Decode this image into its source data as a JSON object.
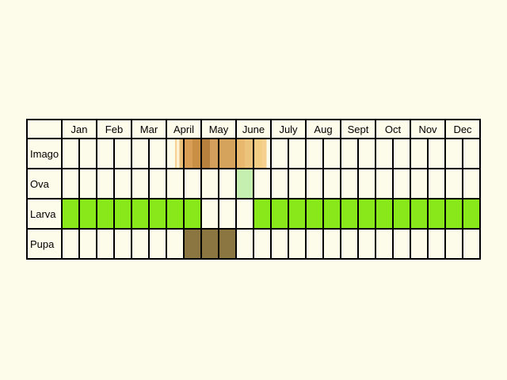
{
  "months": [
    "Jan",
    "Feb",
    "Mar",
    "April",
    "May",
    "June",
    "July",
    "Aug",
    "Sept",
    "Oct",
    "Nov",
    "Dec"
  ],
  "rows": [
    {
      "label": "Imago",
      "fills": [
        {
          "from": 6.5,
          "to": 6.6,
          "color": "#f5d08e"
        },
        {
          "from": 6.6,
          "to": 6.75,
          "color": "#fdf2d4"
        },
        {
          "from": 6.75,
          "to": 7.0,
          "color": "#e9bf78"
        },
        {
          "from": 7.0,
          "to": 7.5,
          "color": "#d99e56"
        },
        {
          "from": 7.5,
          "to": 8.0,
          "color": "#c98f45"
        },
        {
          "from": 8.0,
          "to": 8.5,
          "color": "#b7813d"
        },
        {
          "from": 8.5,
          "to": 9.0,
          "color": "#d29e5c"
        },
        {
          "from": 9.0,
          "to": 10.0,
          "color": "#d6a35c"
        },
        {
          "from": 10.0,
          "to": 10.5,
          "color": "#e7b86e"
        },
        {
          "from": 10.5,
          "to": 11.0,
          "color": "#ecc37b"
        },
        {
          "from": 11.0,
          "to": 11.5,
          "color": "#f2cd84"
        },
        {
          "from": 11.5,
          "to": 11.75,
          "color": "#f5d08e"
        }
      ]
    },
    {
      "label": "Ova",
      "fills": [
        {
          "from": 10.0,
          "to": 11.0,
          "color": "#c5efb0"
        }
      ]
    },
    {
      "label": "Larva",
      "fills": [
        {
          "from": 0,
          "to": 8.0,
          "color": "#88e81a"
        },
        {
          "from": 11.0,
          "to": 24.0,
          "color": "#88e81a"
        }
      ]
    },
    {
      "label": "Pupa",
      "fills": [
        {
          "from": 7.0,
          "to": 10.0,
          "color": "#8b7540"
        }
      ]
    }
  ],
  "colors": {
    "background": "#fdfbe9",
    "cell": "#fdfbe9",
    "grid": "#000000"
  }
}
